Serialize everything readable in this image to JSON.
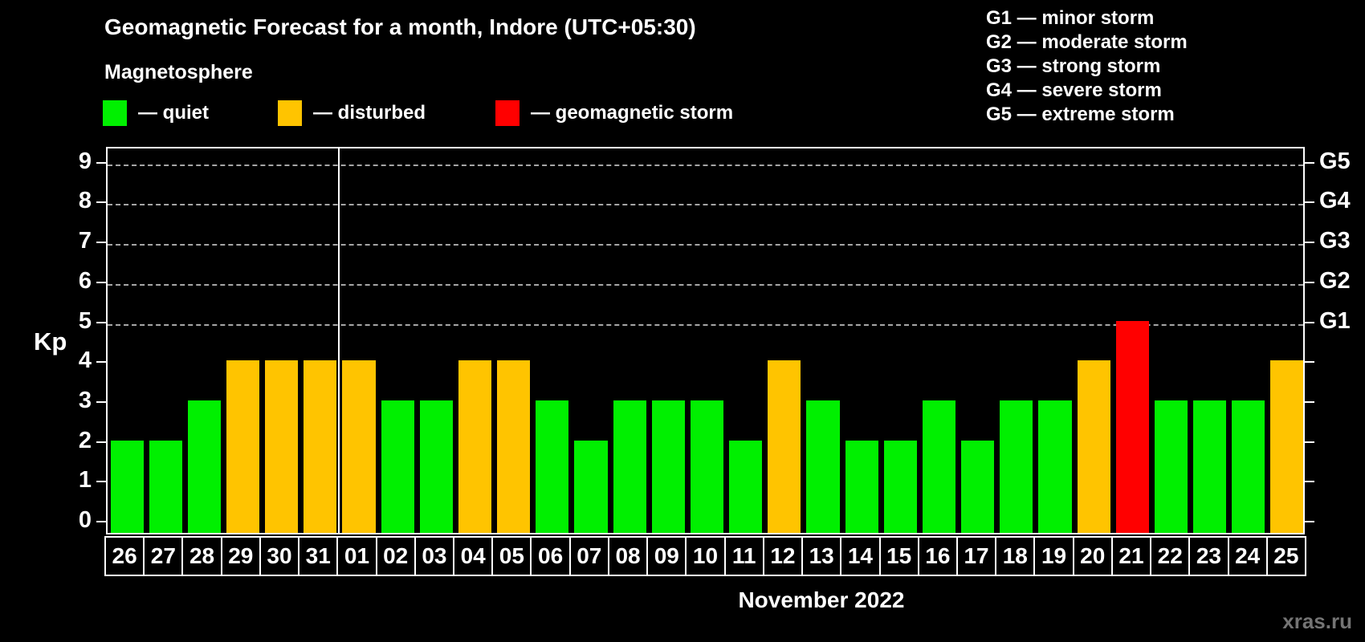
{
  "subtitle": "Magnetosphere",
  "legend": {
    "items": [
      {
        "key": "quiet",
        "label": "— quiet"
      },
      {
        "key": "disturbed",
        "label": "— disturbed"
      },
      {
        "key": "storm",
        "label": "— geomagnetic storm"
      }
    ]
  },
  "g_scale_legend": [
    "G1 — minor storm",
    "G2 — moderate storm",
    "G3 — strong storm",
    "G4 — severe storm",
    "G5 — extreme storm"
  ],
  "watermark": "xras.ru",
  "chart_data": {
    "type": "bar",
    "title": "Geomagnetic Forecast for a month, Indore (UTC+05:30)",
    "xlabel": "November 2022",
    "ylabel": "Kp",
    "ylim": [
      0,
      9.4
    ],
    "y_ticks": [
      0,
      1,
      2,
      3,
      4,
      5,
      6,
      7,
      8,
      9
    ],
    "gridlines": [
      5,
      6,
      7,
      8,
      9
    ],
    "grid": "dashed horizontal lines at G-storm levels only",
    "legend_position": "top",
    "categories": [
      "26",
      "27",
      "28",
      "29",
      "30",
      "31",
      "01",
      "02",
      "03",
      "04",
      "05",
      "06",
      "07",
      "08",
      "09",
      "10",
      "11",
      "12",
      "13",
      "14",
      "15",
      "16",
      "17",
      "18",
      "19",
      "20",
      "21",
      "22",
      "23",
      "24",
      "25"
    ],
    "values": [
      2,
      2,
      3,
      4,
      4,
      4,
      4,
      3,
      3,
      4,
      4,
      3,
      2,
      3,
      3,
      3,
      2,
      4,
      3,
      2,
      2,
      3,
      2,
      3,
      3,
      4,
      5,
      3,
      3,
      3,
      4
    ],
    "statuses": [
      "quiet",
      "quiet",
      "quiet",
      "disturbed",
      "disturbed",
      "disturbed",
      "disturbed",
      "quiet",
      "quiet",
      "disturbed",
      "disturbed",
      "quiet",
      "quiet",
      "quiet",
      "quiet",
      "quiet",
      "quiet",
      "disturbed",
      "quiet",
      "quiet",
      "quiet",
      "quiet",
      "quiet",
      "quiet",
      "quiet",
      "disturbed",
      "storm",
      "quiet",
      "quiet",
      "quiet",
      "disturbed"
    ],
    "colors": {
      "quiet": "#00f000",
      "disturbed": "#ffc400",
      "storm": "#ff0000"
    },
    "right_axis": [
      {
        "kp": 5,
        "label": "G1"
      },
      {
        "kp": 6,
        "label": "G2"
      },
      {
        "kp": 7,
        "label": "G3"
      },
      {
        "kp": 8,
        "label": "G4"
      },
      {
        "kp": 9,
        "label": "G5"
      }
    ],
    "month_separator_after_index": 5
  }
}
